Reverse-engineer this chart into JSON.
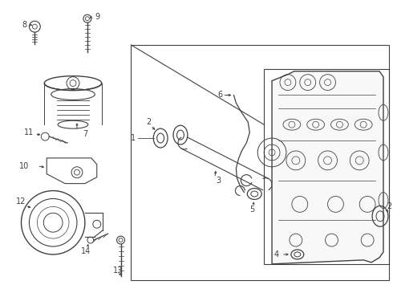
{
  "bg_color": "#ffffff",
  "line_color": "#404040",
  "fig_width": 4.9,
  "fig_height": 3.6,
  "dpi": 100
}
